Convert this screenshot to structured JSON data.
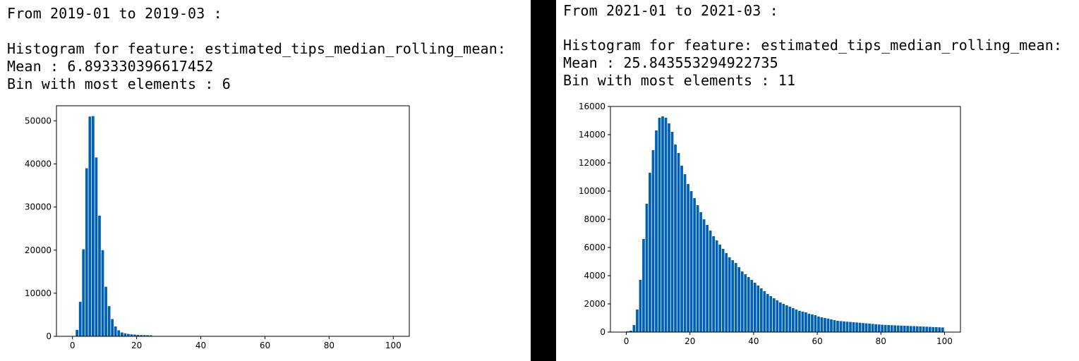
{
  "left": {
    "range_line": "From 2019-01 to 2019-03 :",
    "hist_line": "Histogram for feature: estimated_tips_median_rolling_mean:",
    "mean_line": "Mean : 6.893330396617452",
    "bin_line": "Bin with most elements : 6"
  },
  "right": {
    "range_line": "From 2021-01 to 2021-03 :",
    "hist_line": "Histogram for feature: estimated_tips_median_rolling_mean:",
    "mean_line": "Mean : 25.843553294922735",
    "bin_line": "Bin with most elements : 11"
  },
  "colors": {
    "bar": "#0060b6",
    "frame": "#000000",
    "background": "#ffffff"
  },
  "chart_data": [
    {
      "type": "bar",
      "title": "",
      "xlabel": "",
      "ylabel": "",
      "xlim": [
        -5,
        105
      ],
      "ylim": [
        0,
        53500
      ],
      "x_ticks": [
        0,
        20,
        40,
        60,
        80,
        100
      ],
      "y_ticks": [
        0,
        10000,
        20000,
        30000,
        40000,
        50000
      ],
      "bin_width": 1,
      "bin_starts": [
        0,
        1,
        2,
        3,
        4,
        5,
        6,
        7,
        8,
        9,
        10,
        11,
        12,
        13,
        14,
        15,
        16,
        17,
        18,
        19,
        20,
        21,
        22,
        23,
        24
      ],
      "values": [
        0,
        1500,
        8000,
        20200,
        39000,
        51000,
        51100,
        41500,
        28000,
        20000,
        11500,
        7000,
        4000,
        2300,
        1400,
        900,
        700,
        550,
        450,
        400,
        350,
        300,
        280,
        260,
        240
      ]
    },
    {
      "type": "bar",
      "title": "",
      "xlabel": "",
      "ylabel": "",
      "xlim": [
        -5,
        105
      ],
      "ylim": [
        0,
        16000
      ],
      "x_ticks": [
        0,
        20,
        40,
        60,
        80,
        100
      ],
      "y_ticks": [
        0,
        2000,
        4000,
        6000,
        8000,
        10000,
        12000,
        14000,
        16000
      ],
      "bin_width": 1,
      "bin_starts": [
        0,
        1,
        2,
        3,
        4,
        5,
        6,
        7,
        8,
        9,
        10,
        11,
        12,
        13,
        14,
        15,
        16,
        17,
        18,
        19,
        20,
        21,
        22,
        23,
        24,
        25,
        26,
        27,
        28,
        29,
        30,
        31,
        32,
        33,
        34,
        35,
        36,
        37,
        38,
        39,
        40,
        41,
        42,
        43,
        44,
        45,
        46,
        47,
        48,
        49,
        50,
        51,
        52,
        53,
        54,
        55,
        56,
        57,
        58,
        59,
        60,
        61,
        62,
        63,
        64,
        65,
        66,
        67,
        68,
        69,
        70,
        71,
        72,
        73,
        74,
        75,
        76,
        77,
        78,
        79,
        80,
        81,
        82,
        83,
        84,
        85,
        86,
        87,
        88,
        89,
        90,
        91,
        92,
        93,
        94,
        95,
        96,
        97,
        98,
        99
      ],
      "values": [
        50,
        100,
        500,
        1600,
        3700,
        6600,
        9100,
        11300,
        12900,
        14300,
        15200,
        15300,
        15200,
        14800,
        14200,
        13300,
        12700,
        11800,
        11200,
        10500,
        10000,
        9500,
        9000,
        8500,
        8000,
        7600,
        7200,
        6800,
        6500,
        6200,
        5900,
        5600,
        5300,
        5100,
        4900,
        4600,
        4300,
        4100,
        3900,
        3700,
        3500,
        3300,
        3100,
        2900,
        2700,
        2550,
        2400,
        2250,
        2100,
        2000,
        1900,
        1800,
        1700,
        1600,
        1500,
        1450,
        1400,
        1300,
        1250,
        1200,
        1100,
        1050,
        1000,
        950,
        900,
        850,
        800,
        780,
        760,
        740,
        720,
        700,
        680,
        660,
        640,
        620,
        600,
        580,
        560,
        540,
        520,
        510,
        500,
        490,
        480,
        470,
        460,
        450,
        440,
        430,
        420,
        410,
        400,
        390,
        380,
        370,
        360,
        350,
        340,
        330
      ]
    }
  ]
}
